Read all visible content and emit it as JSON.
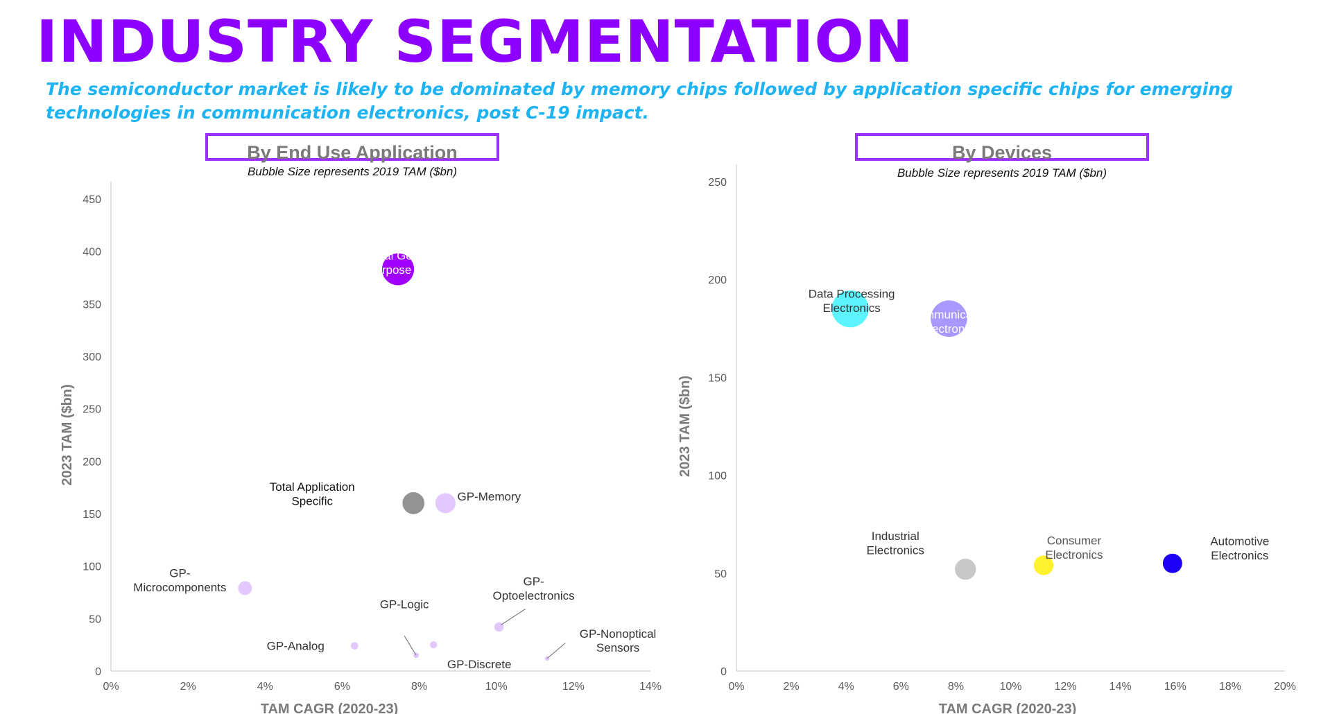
{
  "page": {
    "title": "INDUSTRY SEGMENTATION",
    "subtitle": "The semiconductor market is likely to be dominated by memory chips followed by application specific chips for emerging technologies in communication electronics, post C-19 impact."
  },
  "chart_data": [
    {
      "type": "bubble",
      "title": "By End Use Application",
      "subtitle": "Bubble Size represents 2019 TAM ($bn)",
      "xlabel": "TAM CAGR (2020-23)",
      "ylabel": "2023 TAM ($bn)",
      "xlim": [
        0,
        0.14
      ],
      "ylim": [
        0,
        450
      ],
      "x_ticks": [
        "0%",
        "2%",
        "4%",
        "6%",
        "8%",
        "10%",
        "12%",
        "14%"
      ],
      "y_ticks": [
        "0",
        "50",
        "100",
        "150",
        "200",
        "250",
        "300",
        "350",
        "400",
        "450"
      ],
      "series": [
        {
          "label": "Total General Purpose (GP)",
          "x": 0.0745,
          "y": 383,
          "size": 340,
          "color": "#a100ff",
          "label_position": "inside",
          "label_color": "#ffffff"
        },
        {
          "label": "GP-Memory",
          "x": 0.0868,
          "y": 160,
          "size": 135,
          "color": "#e3c8ff",
          "label_position": "right",
          "label_color": "#333333"
        },
        {
          "label": "Total Application Specific",
          "x": 0.0785,
          "y": 160,
          "size": 160,
          "color": "#808080",
          "opacity": 0.85,
          "label_position": "left",
          "label_color": "#111111"
        },
        {
          "label": "GP-Microcomponents",
          "x": 0.0348,
          "y": 79,
          "size": 63,
          "color": "#e3c8ff",
          "label_position": "left",
          "label_color": "#333333"
        },
        {
          "label": "GP-Analog",
          "x": 0.0632,
          "y": 24,
          "size": 18,
          "color": "#e3c8ff",
          "label_position": "left",
          "label_color": "#333333"
        },
        {
          "label": "GP-Logic",
          "x": 0.0792,
          "y": 15,
          "size": 10,
          "color": "#e3c8ff",
          "label_position": "above",
          "label_color": "#333333"
        },
        {
          "label": "GP-Discrete",
          "x": 0.0837,
          "y": 25,
          "size": 17,
          "color": "#e3c8ff",
          "label_position": "below-right",
          "label_color": "#333333"
        },
        {
          "label": "GP-Optoelectronics",
          "x": 0.1007,
          "y": 42,
          "size": 29,
          "color": "#e3c8ff",
          "label_position": "above-right",
          "label_color": "#333333"
        },
        {
          "label": "GP-Nonoptical Sensors",
          "x": 0.1132,
          "y": 12,
          "size": 7,
          "color": "#e3c8ff",
          "label_position": "right",
          "label_color": "#333333"
        }
      ]
    },
    {
      "type": "bubble",
      "title": "By Devices",
      "subtitle": "Bubble Size represents 2019 TAM ($bn)",
      "xlabel": "TAM CAGR (2020-23)",
      "ylabel": "2023 TAM ($bn)",
      "xlim": [
        0,
        0.2
      ],
      "ylim": [
        0,
        250
      ],
      "x_ticks": [
        "0%",
        "2%",
        "4%",
        "6%",
        "8%",
        "10%",
        "12%",
        "14%",
        "16%",
        "18%",
        "20%"
      ],
      "y_ticks": [
        "0",
        "50",
        "100",
        "150",
        "200",
        "250"
      ],
      "series": [
        {
          "label": "Data Processing Electronics",
          "x": 0.0415,
          "y": 185,
          "size": 160,
          "color": "#3ff3ff",
          "opacity": 0.85,
          "label_position": "inside",
          "label_color": "#333333"
        },
        {
          "label": "Communication Electronics",
          "x": 0.0775,
          "y": 180,
          "size": 155,
          "color": "#9a86ff",
          "opacity": 0.85,
          "label_position": "inside",
          "label_color": "#ffffff"
        },
        {
          "label": "Industrial Electronics",
          "x": 0.0835,
          "y": 52,
          "size": 52,
          "color": "#c8c8c8",
          "label_position": "left",
          "label_color": "#333333"
        },
        {
          "label": "Consumer Electronics",
          "x": 0.112,
          "y": 54,
          "size": 45,
          "color": "#fff12e",
          "label_position": "inside",
          "label_color": "#555555"
        },
        {
          "label": "Automotive Electronics",
          "x": 0.159,
          "y": 55,
          "size": 44,
          "color": "#1c00f5",
          "label_position": "right",
          "label_color": "#333333"
        }
      ]
    }
  ]
}
